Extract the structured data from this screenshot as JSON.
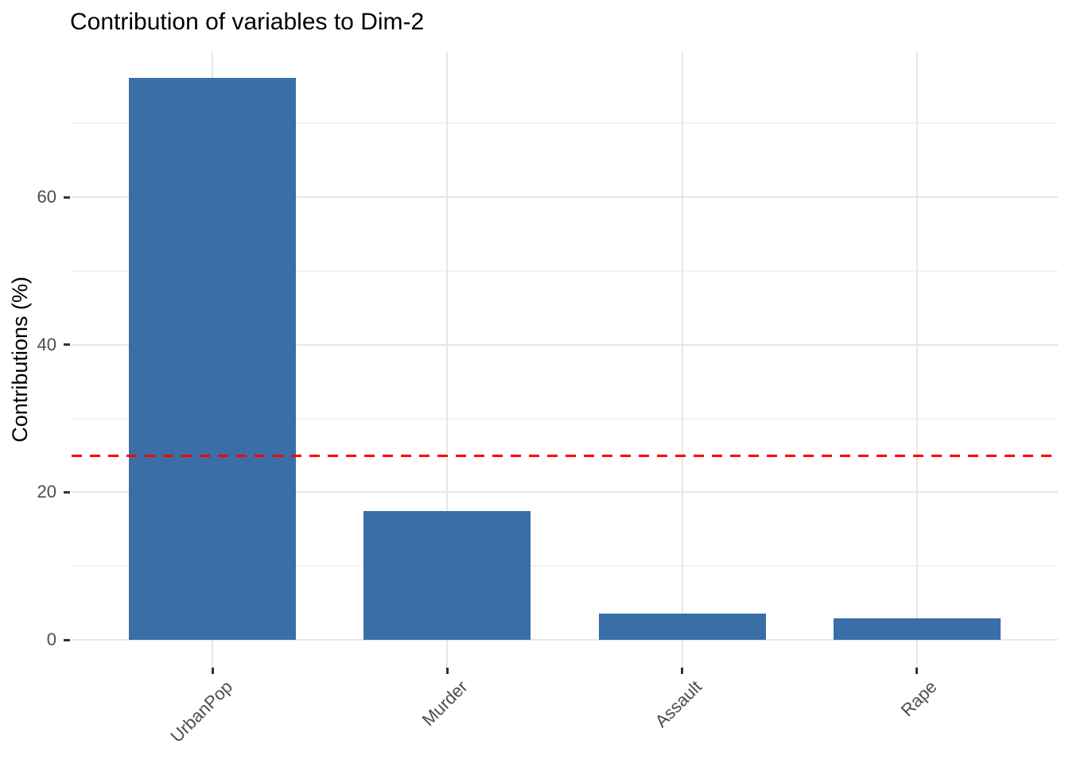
{
  "chart_data": {
    "type": "bar",
    "title": "Contribution of variables to Dim-2",
    "xlabel": "",
    "ylabel": "Contributions (%)",
    "categories": [
      "UrbanPop",
      "Murder",
      "Assault",
      "Rape"
    ],
    "values": [
      76.2,
      17.5,
      3.6,
      2.9
    ],
    "yticks": [
      0,
      20,
      40,
      60
    ],
    "minor_yticks": [
      10,
      30,
      50,
      70
    ],
    "ylim": [
      -3.8,
      80
    ],
    "grid": "major and minor horizontal, major vertical at category centers",
    "legend": "none",
    "reference_line": {
      "value": 25,
      "style": "dashed",
      "color": "#FF0000"
    },
    "colors": {
      "bar_fill": "#3A6EA6",
      "background": "#FFFFFF",
      "grid_major": "#E7E7E7",
      "grid_minor": "#F2F2F2",
      "tick_mark": "#333333",
      "tick_label": "#4D4D4D",
      "title_text": "#000000"
    }
  }
}
